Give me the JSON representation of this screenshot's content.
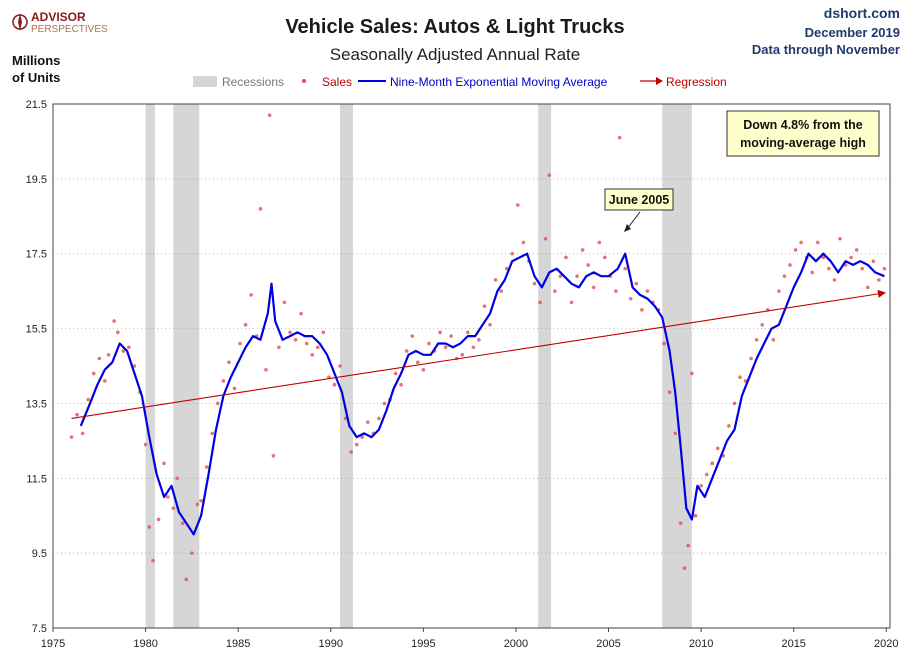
{
  "header": {
    "logo_line1": "ADVISOR",
    "logo_line2": "PERSPECTIVES",
    "source_site": "dshort.com",
    "source_date": "December 2019",
    "source_note": "Data through November"
  },
  "colors": {
    "recession": "#d6d6d6",
    "sales": "#d9534f",
    "ema": "#0000e6",
    "regression": "#c00000",
    "logo": "#8a1a1a"
  },
  "chart_data": {
    "type": "line",
    "title": "Vehicle Sales: Autos & Light Trucks",
    "subtitle": "Seasonally Adjusted Annual Rate",
    "ylabel_line1": "Millions",
    "ylabel_line2": "of Units",
    "xlim": [
      1975,
      2020.2
    ],
    "ylim": [
      7.5,
      21.5
    ],
    "y_ticks": [
      7.5,
      9.5,
      11.5,
      13.5,
      15.5,
      17.5,
      19.5,
      21.5
    ],
    "y_tick_labels": [
      "7.5",
      "9.5",
      "11.5",
      "13.5",
      "15.5",
      "17.5",
      "19.5",
      "21.5"
    ],
    "x_ticks": [
      1975,
      1980,
      1985,
      1990,
      1995,
      2000,
      2005,
      2010,
      2015,
      2020
    ],
    "x_tick_labels": [
      "1975",
      "1980",
      "1985",
      "1990",
      "1995",
      "2000",
      "2005",
      "2010",
      "2015",
      "2020"
    ],
    "grid": "horizontal dotted",
    "legend": {
      "placement": "top-center",
      "recessions": "Recessions",
      "sales": "Sales",
      "ema": "Nine-Month Exponential Moving Average",
      "regression": "Regression"
    },
    "recessions": [
      [
        1980.0,
        1980.5
      ],
      [
        1981.5,
        1982.9
      ],
      [
        1990.5,
        1991.2
      ],
      [
        2001.2,
        2001.9
      ],
      [
        2007.9,
        2009.5
      ]
    ],
    "ema_series": {
      "name": "Nine-Month Exponential Moving Average",
      "x": [
        1976.5,
        1977.0,
        1977.4,
        1977.8,
        1978.2,
        1978.6,
        1979.0,
        1979.4,
        1979.8,
        1980.2,
        1980.6,
        1981.0,
        1981.4,
        1981.8,
        1982.2,
        1982.6,
        1983.0,
        1983.4,
        1983.8,
        1984.2,
        1984.6,
        1985.0,
        1985.4,
        1985.8,
        1986.2,
        1986.6,
        1986.8,
        1987.0,
        1987.4,
        1987.8,
        1988.2,
        1988.6,
        1989.0,
        1989.4,
        1989.8,
        1990.2,
        1990.6,
        1991.0,
        1991.4,
        1991.8,
        1992.2,
        1992.6,
        1993.0,
        1993.4,
        1993.8,
        1994.2,
        1994.6,
        1995.0,
        1995.4,
        1995.8,
        1996.2,
        1996.6,
        1997.0,
        1997.4,
        1997.8,
        1998.2,
        1998.6,
        1999.0,
        1999.4,
        1999.8,
        2000.2,
        2000.6,
        2001.0,
        2001.4,
        2001.8,
        2002.2,
        2002.6,
        2003.0,
        2003.4,
        2003.8,
        2004.2,
        2004.6,
        2005.0,
        2005.5,
        2005.9,
        2006.3,
        2006.7,
        2007.1,
        2007.5,
        2007.9,
        2008.3,
        2008.6,
        2008.9,
        2009.2,
        2009.5,
        2009.8,
        2010.2,
        2010.6,
        2011.0,
        2011.4,
        2011.8,
        2012.2,
        2012.6,
        2013.0,
        2013.4,
        2013.8,
        2014.2,
        2014.6,
        2015.0,
        2015.4,
        2015.8,
        2016.2,
        2016.6,
        2017.0,
        2017.4,
        2017.8,
        2018.2,
        2018.6,
        2019.0,
        2019.4,
        2019.9
      ],
      "values": [
        12.9,
        13.5,
        14.0,
        14.4,
        14.6,
        15.1,
        14.9,
        14.3,
        13.7,
        12.6,
        11.6,
        11.0,
        11.3,
        10.6,
        10.3,
        10.0,
        10.5,
        11.6,
        12.8,
        13.7,
        14.2,
        14.6,
        15.0,
        15.3,
        15.2,
        15.9,
        16.7,
        15.7,
        15.2,
        15.3,
        15.4,
        15.3,
        15.3,
        15.1,
        14.8,
        14.3,
        13.8,
        12.9,
        12.6,
        12.7,
        12.6,
        12.8,
        13.3,
        13.9,
        14.3,
        14.8,
        14.9,
        14.8,
        14.8,
        15.1,
        15.1,
        15.0,
        15.1,
        15.3,
        15.3,
        15.6,
        15.9,
        16.5,
        16.8,
        17.3,
        17.4,
        17.5,
        16.9,
        16.6,
        17.0,
        17.1,
        16.9,
        16.7,
        16.6,
        16.9,
        17.0,
        16.9,
        16.9,
        17.1,
        17.5,
        16.6,
        16.4,
        16.3,
        16.1,
        15.8,
        14.9,
        13.8,
        12.3,
        10.7,
        10.4,
        11.3,
        11.0,
        11.5,
        12.0,
        12.5,
        12.8,
        13.7,
        14.2,
        14.7,
        15.1,
        15.5,
        15.6,
        16.1,
        16.6,
        17.0,
        17.5,
        17.3,
        17.5,
        17.3,
        17.0,
        17.3,
        17.2,
        17.3,
        17.2,
        17.0,
        16.9
      ]
    },
    "sales_scatter": {
      "name": "Sales",
      "x": [
        1976.0,
        1976.3,
        1976.6,
        1976.9,
        1977.2,
        1977.5,
        1977.8,
        1978.0,
        1978.3,
        1978.5,
        1978.8,
        1979.1,
        1979.4,
        1979.7,
        1980.0,
        1980.2,
        1980.4,
        1980.7,
        1981.0,
        1981.2,
        1981.5,
        1981.7,
        1982.0,
        1982.2,
        1982.5,
        1982.8,
        1983.0,
        1983.3,
        1983.6,
        1983.9,
        1984.2,
        1984.5,
        1984.8,
        1985.1,
        1985.4,
        1985.7,
        1986.0,
        1986.2,
        1986.5,
        1986.7,
        1986.9,
        1987.2,
        1987.5,
        1987.8,
        1988.1,
        1988.4,
        1988.7,
        1989.0,
        1989.3,
        1989.6,
        1989.9,
        1990.2,
        1990.5,
        1990.8,
        1991.1,
        1991.4,
        1991.7,
        1992.0,
        1992.3,
        1992.6,
        1992.9,
        1993.2,
        1993.5,
        1993.8,
        1994.1,
        1994.4,
        1994.7,
        1995.0,
        1995.3,
        1995.6,
        1995.9,
        1996.2,
        1996.5,
        1996.8,
        1997.1,
        1997.4,
        1997.7,
        1998.0,
        1998.3,
        1998.6,
        1998.9,
        1999.2,
        1999.5,
        1999.8,
        2000.1,
        2000.4,
        2000.7,
        2001.0,
        2001.3,
        2001.6,
        2001.8,
        2002.1,
        2002.4,
        2002.7,
        2003.0,
        2003.3,
        2003.6,
        2003.9,
        2004.2,
        2004.5,
        2004.8,
        2005.1,
        2005.4,
        2005.6,
        2005.9,
        2006.2,
        2006.5,
        2006.8,
        2007.1,
        2007.4,
        2007.7,
        2008.0,
        2008.3,
        2008.6,
        2008.9,
        2009.1,
        2009.3,
        2009.5,
        2009.7,
        2010.0,
        2010.3,
        2010.6,
        2010.9,
        2011.2,
        2011.5,
        2011.8,
        2012.1,
        2012.4,
        2012.7,
        2013.0,
        2013.3,
        2013.6,
        2013.9,
        2014.2,
        2014.5,
        2014.8,
        2015.1,
        2015.4,
        2015.7,
        2016.0,
        2016.3,
        2016.6,
        2016.9,
        2017.2,
        2017.5,
        2017.8,
        2018.1,
        2018.4,
        2018.7,
        2019.0,
        2019.3,
        2019.6,
        2019.9
      ],
      "values": [
        12.6,
        13.2,
        12.7,
        13.6,
        14.3,
        14.7,
        14.1,
        14.8,
        15.7,
        15.4,
        14.9,
        15.0,
        14.5,
        13.8,
        12.4,
        10.2,
        9.3,
        10.4,
        11.9,
        11.0,
        10.7,
        11.5,
        10.3,
        8.8,
        9.5,
        10.8,
        10.9,
        11.8,
        12.7,
        13.5,
        14.1,
        14.6,
        13.9,
        15.1,
        15.6,
        16.4,
        15.3,
        18.7,
        14.4,
        21.2,
        12.1,
        15.0,
        16.2,
        15.4,
        15.2,
        15.9,
        15.1,
        14.8,
        15.0,
        15.4,
        14.2,
        14.0,
        14.5,
        13.1,
        12.2,
        12.4,
        12.6,
        13.0,
        12.7,
        13.1,
        13.5,
        13.6,
        14.3,
        14.0,
        14.9,
        15.3,
        14.6,
        14.4,
        15.1,
        14.9,
        15.4,
        15.0,
        15.3,
        14.7,
        14.8,
        15.4,
        15.0,
        15.2,
        16.1,
        15.6,
        16.8,
        16.5,
        17.1,
        17.5,
        18.8,
        17.8,
        17.3,
        16.7,
        16.2,
        17.9,
        19.6,
        16.5,
        16.9,
        17.4,
        16.2,
        16.9,
        17.6,
        17.2,
        16.6,
        17.8,
        17.4,
        16.9,
        16.5,
        20.6,
        17.1,
        16.3,
        16.7,
        16.0,
        16.5,
        16.2,
        16.0,
        15.1,
        13.8,
        12.7,
        10.3,
        9.1,
        9.7,
        14.3,
        10.5,
        11.3,
        11.6,
        11.9,
        12.3,
        12.1,
        12.9,
        13.5,
        14.2,
        14.1,
        14.7,
        15.2,
        15.6,
        16.0,
        15.2,
        16.5,
        16.9,
        17.2,
        17.6,
        17.8,
        17.4,
        17.0,
        17.8,
        17.4,
        17.1,
        16.8,
        17.9,
        17.2,
        17.4,
        17.6,
        17.1,
        16.6,
        17.3,
        16.8,
        17.1
      ]
    },
    "regression": {
      "name": "Regression",
      "start": [
        1976.0,
        13.1
      ],
      "end": [
        2020.5,
        16.5
      ]
    },
    "annotations": [
      {
        "text": "June 2005",
        "x": 2005.5,
        "y": 17.6
      },
      {
        "text_line1": "Down 4.8% from the",
        "text_line2": "moving-average high",
        "placement": "top-right"
      }
    ]
  }
}
